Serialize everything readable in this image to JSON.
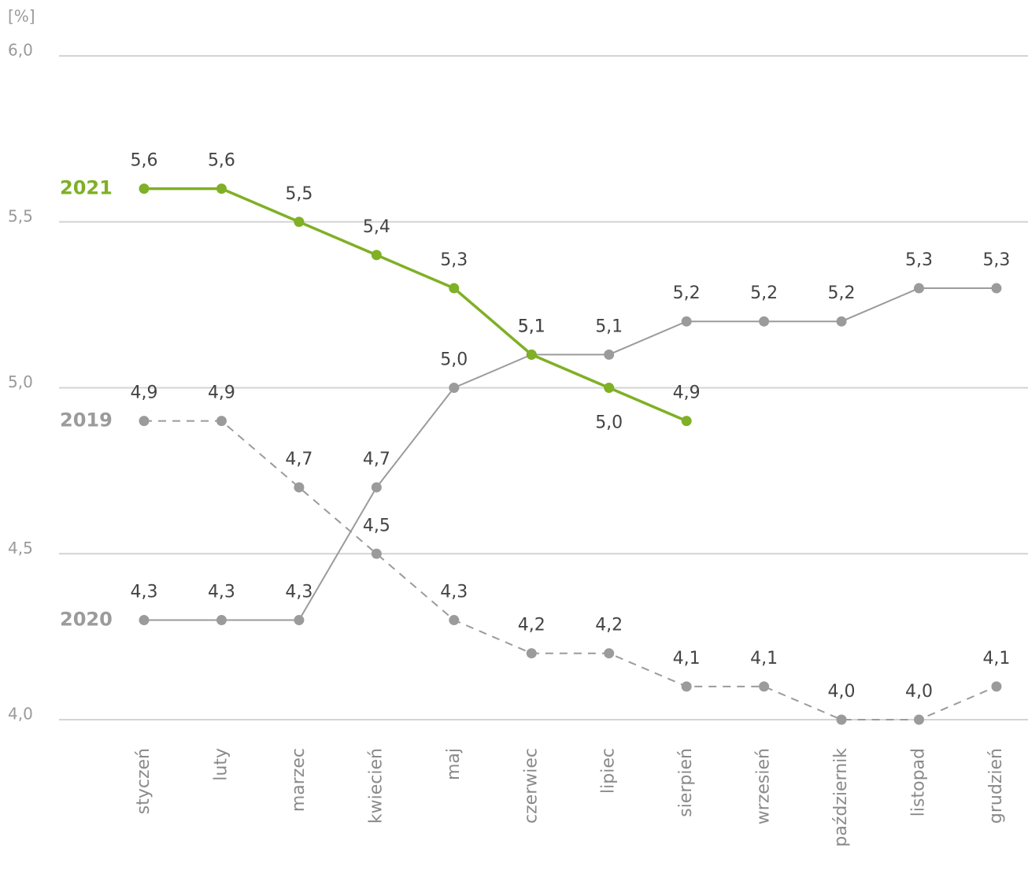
{
  "chart_data": {
    "type": "line",
    "y_label": "[%]",
    "categories": [
      "styczeń",
      "luty",
      "marzec",
      "kwiecień",
      "maj",
      "czerwiec",
      "lipiec",
      "sierpień",
      "wrzesień",
      "październik",
      "listopad",
      "grudzień"
    ],
    "series": [
      {
        "name": "2021",
        "color": "#7fb025",
        "line_style": "solid",
        "values": [
          5.6,
          5.6,
          5.5,
          5.4,
          5.3,
          5.1,
          5.0,
          4.9,
          null,
          null,
          null,
          null
        ],
        "value_labels": [
          "5,6",
          "5,6",
          "5,5",
          "5,4",
          "5,3",
          "5,1",
          "5,0",
          "4,9",
          null,
          null,
          null,
          null
        ]
      },
      {
        "name": "2020",
        "color": "#9b9b9b",
        "line_style": "solid",
        "values": [
          4.3,
          4.3,
          4.3,
          4.7,
          5.0,
          5.1,
          5.1,
          5.2,
          5.2,
          5.2,
          5.3,
          5.3
        ],
        "value_labels": [
          "4,3",
          "4,3",
          "4,3",
          "4,7",
          "5,0",
          "5,1",
          "5,1",
          "5,2",
          "5,2",
          "5,2",
          "5,3",
          "5,3"
        ]
      },
      {
        "name": "2019",
        "color": "#9b9b9b",
        "line_style": "dashed",
        "values": [
          4.9,
          4.9,
          4.7,
          4.5,
          4.3,
          4.2,
          4.2,
          4.1,
          4.1,
          4.0,
          4.0,
          4.1
        ],
        "value_labels": [
          "4,9",
          "4,9",
          "4,7",
          "4,5",
          "4,3",
          "4,2",
          "4,2",
          "4,1",
          "4,1",
          "4,0",
          "4,0",
          "4,1"
        ]
      }
    ],
    "ylim": [
      4.0,
      6.0
    ],
    "yticks": [
      {
        "value": 4.0,
        "label": "4,0"
      },
      {
        "value": 4.5,
        "label": "4,5"
      },
      {
        "value": 5.0,
        "label": "5,0"
      },
      {
        "value": 5.5,
        "label": "5,5"
      },
      {
        "value": 6.0,
        "label": "6,0"
      }
    ],
    "grid": true
  }
}
